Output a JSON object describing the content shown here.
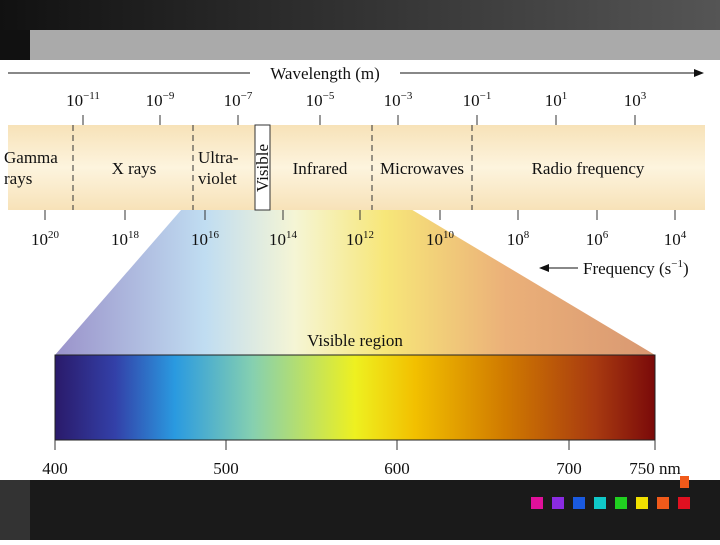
{
  "wavelength_axis": {
    "title": "Wavelength (m)",
    "ticks": [
      {
        "base": "10",
        "exp": "−11"
      },
      {
        "base": "10",
        "exp": "−9"
      },
      {
        "base": "10",
        "exp": "−7"
      },
      {
        "base": "10",
        "exp": "−5"
      },
      {
        "base": "10",
        "exp": "−3"
      },
      {
        "base": "10",
        "exp": "−1"
      },
      {
        "base": "10",
        "exp": "1"
      },
      {
        "base": "10",
        "exp": "3"
      }
    ]
  },
  "regions": {
    "gamma": [
      "Gamma",
      "rays"
    ],
    "xrays": "X rays",
    "uv": [
      "Ultra-",
      "violet"
    ],
    "visible": "Visible",
    "infrared": "Infrared",
    "microwaves": "Microwaves",
    "radio": "Radio frequency"
  },
  "frequency_axis": {
    "title": {
      "text": "Frequency (s",
      "exp": "−1",
      "close": ")"
    },
    "ticks": [
      {
        "base": "10",
        "exp": "20"
      },
      {
        "base": "10",
        "exp": "18"
      },
      {
        "base": "10",
        "exp": "16"
      },
      {
        "base": "10",
        "exp": "14"
      },
      {
        "base": "10",
        "exp": "12"
      },
      {
        "base": "10",
        "exp": "10"
      },
      {
        "base": "10",
        "exp": "8"
      },
      {
        "base": "10",
        "exp": "6"
      },
      {
        "base": "10",
        "exp": "4"
      }
    ]
  },
  "visible_region": {
    "title": "Visible region",
    "scale": [
      "400",
      "500",
      "600",
      "700",
      "750 nm"
    ]
  }
}
